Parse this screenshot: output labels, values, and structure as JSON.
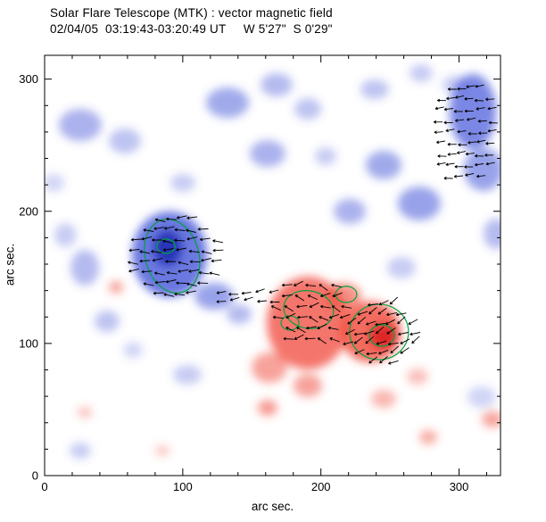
{
  "chart_data": {
    "type": "heatmap",
    "description": "Solar vector magnetogram map: blue blobs = negative magnetic polarity, red blobs = positive polarity, green contours = field strength levels, short black arrows = transverse field vectors.",
    "title": "Solar Flare Telescope (MTK) : vector magnetic field",
    "subtitle": "02/04/05  03:19:43-03:20:49 UT     W 5'27\"  S 0'29\"",
    "xlabel": "arc sec.",
    "ylabel": "arc sec.",
    "x_range": [
      0,
      330
    ],
    "y_range": [
      0,
      318
    ],
    "x_ticks": [
      0,
      100,
      200,
      300
    ],
    "y_ticks": [
      0,
      100,
      200,
      300
    ],
    "minor_tick_step": 20,
    "colors": {
      "negative": "#4455d8",
      "negative_core": "#1b2bb0",
      "positive": "#f04838",
      "positive_core": "#d81f1f",
      "contour": "#00a33e",
      "vector": "#000000",
      "axis": "#000000",
      "background": "#ffffff"
    },
    "blob_format": "[x_arcsec, y_arcsec, rx_arcsec, ry_arcsec, opacity, is_dark_core]",
    "blobs": {
      "negative": [
        [
          90.4,
          167.4,
          27.1,
          32.4,
          0.8,
          0
        ],
        [
          89.1,
          172.2,
          10.3,
          13.5,
          0.85,
          1
        ],
        [
          310.0,
          275.5,
          16.8,
          28.4,
          0.7,
          0
        ],
        [
          317.7,
          231.6,
          14.2,
          16.2,
          0.55,
          0
        ],
        [
          25.8,
          265.3,
          15.5,
          12.2,
          0.45,
          0
        ],
        [
          58.1,
          253.2,
          11.6,
          9.5,
          0.35,
          0
        ],
        [
          132.4,
          282.2,
          15.5,
          11.5,
          0.5,
          0
        ],
        [
          167.9,
          295.7,
          11.6,
          8.8,
          0.4,
          0
        ],
        [
          190.5,
          277.5,
          9.7,
          8.1,
          0.35,
          0
        ],
        [
          161.4,
          243.7,
          12.9,
          10.1,
          0.45,
          0
        ],
        [
          245.4,
          235.0,
          12.9,
          10.8,
          0.5,
          0
        ],
        [
          271.2,
          205.9,
          15.5,
          12.8,
          0.55,
          0
        ],
        [
          220.9,
          199.9,
          11.6,
          9.5,
          0.45,
          0
        ],
        [
          29.1,
          157.3,
          10.3,
          13.5,
          0.4,
          0
        ],
        [
          45.2,
          116.8,
          9.0,
          8.1,
          0.35,
          0
        ],
        [
          122.7,
          135.7,
          14.2,
          10.1,
          0.55,
          0
        ],
        [
          140.8,
          122.2,
          9.0,
          7.4,
          0.4,
          0
        ],
        [
          103.3,
          76.3,
          10.3,
          7.4,
          0.3,
          0
        ],
        [
          258.3,
          157.3,
          10.3,
          8.1,
          0.3,
          0
        ],
        [
          326.8,
          183.0,
          9.0,
          11.5,
          0.4,
          0
        ],
        [
          238.9,
          292.3,
          10.3,
          7.4,
          0.35,
          0
        ],
        [
          272.5,
          304.5,
          8.4,
          6.8,
          0.3,
          0
        ],
        [
          100.1,
          221.5,
          9.0,
          6.8,
          0.3,
          0
        ],
        [
          316.4,
          59.4,
          10.3,
          8.1,
          0.25,
          0
        ],
        [
          6.5,
          221.5,
          7.7,
          6.8,
          0.25,
          0
        ],
        [
          25.8,
          18.9,
          7.7,
          6.1,
          0.3,
          0
        ],
        [
          297.0,
          295.7,
          9.0,
          6.8,
          0.3,
          0
        ],
        [
          203.4,
          241.7,
          7.7,
          6.8,
          0.3,
          0
        ],
        [
          15.0,
          182.0,
          8.0,
          9.0,
          0.3,
          0
        ],
        [
          64.0,
          95.0,
          7.0,
          6.0,
          0.25,
          0
        ]
      ],
      "positive": [
        [
          190.5,
          115.5,
          29.7,
          35.1,
          0.75,
          0
        ],
        [
          235.7,
          108.7,
          22.0,
          23.0,
          0.8,
          0
        ],
        [
          245.4,
          105.3,
          10.3,
          9.5,
          0.85,
          1
        ],
        [
          216.3,
          135.7,
          12.9,
          10.1,
          0.6,
          0
        ],
        [
          162.7,
          81.7,
          12.9,
          11.5,
          0.5,
          0
        ],
        [
          190.5,
          68.2,
          10.3,
          8.8,
          0.5,
          0
        ],
        [
          161.4,
          51.3,
          7.1,
          6.1,
          0.55,
          0
        ],
        [
          277.7,
          29.0,
          6.5,
          5.4,
          0.45,
          0
        ],
        [
          324.2,
          42.5,
          7.7,
          6.1,
          0.5,
          0
        ],
        [
          51.7,
          142.5,
          5.2,
          4.7,
          0.5,
          0
        ],
        [
          29.1,
          47.9,
          5.2,
          4.1,
          0.35,
          0
        ],
        [
          245.4,
          58.1,
          9.0,
          6.8,
          0.4,
          0
        ],
        [
          269.9,
          75.0,
          7.7,
          6.1,
          0.35,
          0
        ],
        [
          85.2,
          18.9,
          5.2,
          4.1,
          0.3,
          0
        ]
      ]
    },
    "contour_format": "[x_arcsec, y_arcsec, rx_arcsec, ry_arcsec, rotation_deg]",
    "contours": [
      [
        92.3,
        166.1,
        19.4,
        28.4,
        -15
      ],
      [
        87.8,
        173.5,
        6.5,
        5.4,
        0
      ],
      [
        242.1,
        108.7,
        21.3,
        20.9,
        0
      ],
      [
        244.1,
        106.0,
        9.0,
        8.1,
        0
      ],
      [
        191.1,
        125.6,
        18.1,
        14.2,
        10
      ],
      [
        177.6,
        115.5,
        6.5,
        5.4,
        0
      ],
      [
        218.3,
        137.1,
        7.7,
        6.1,
        0
      ]
    ],
    "vector_clusters": [
      {
        "cx": 94.9,
        "cy": 166.1,
        "cols": 8,
        "rows": 8,
        "dx": 8.4,
        "dy": 8.1,
        "clip_rx": 34,
        "clip_ry": 31,
        "angle": 180,
        "jitter": 14,
        "len": 7.7
      },
      {
        "cx": 147.2,
        "cy": 135.7,
        "cols": 5,
        "rows": 2,
        "dx": 9.0,
        "dy": 6.0,
        "clip_rx": 24,
        "clip_ry": 8,
        "angle": 190,
        "jitter": 10,
        "len": 7.0
      },
      {
        "cx": 193.7,
        "cy": 123.6,
        "cols": 7,
        "rows": 6,
        "dx": 8.4,
        "dy": 8.1,
        "clip_rx": 28,
        "clip_ry": 26,
        "angle": 175,
        "jitter": 32,
        "len": 7.7
      },
      {
        "cx": 244.1,
        "cy": 108.7,
        "cols": 7,
        "rows": 7,
        "dx": 7.7,
        "dy": 7.4,
        "clip_rx": 26,
        "clip_ry": 26,
        "angle": 205,
        "jitter": 18,
        "len": 7.7
      },
      {
        "cx": 304.8,
        "cy": 260.0,
        "cols": 6,
        "rows": 9,
        "dx": 7.4,
        "dy": 8.4,
        "clip_rx": 24,
        "clip_ry": 40,
        "angle": 185,
        "jitter": 7,
        "len": 6.5
      }
    ]
  }
}
